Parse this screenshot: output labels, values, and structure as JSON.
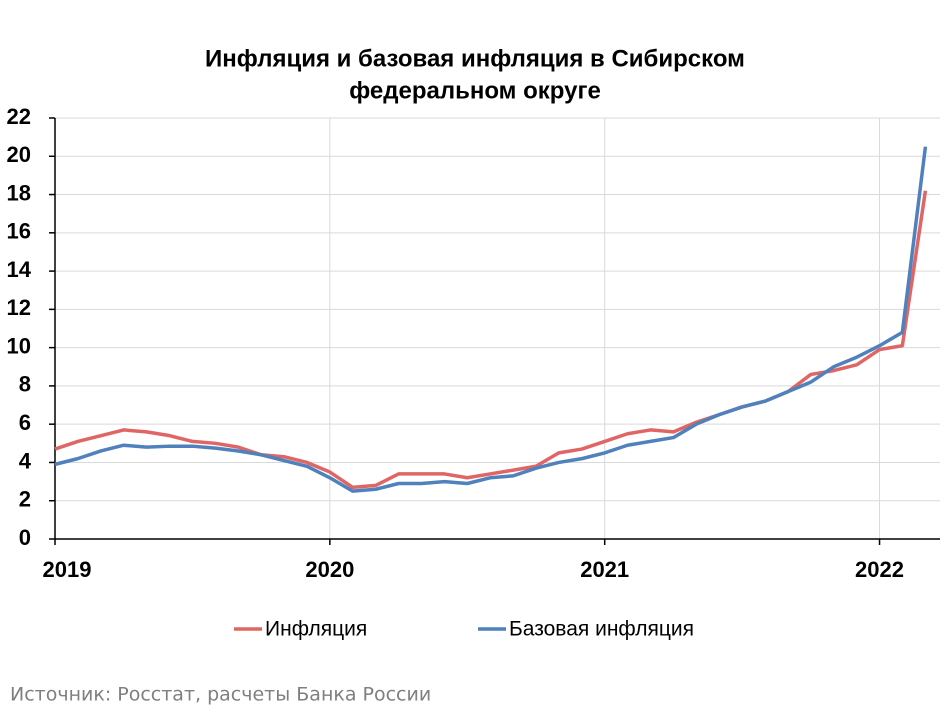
{
  "chart_data": {
    "type": "line",
    "title": [
      "Инфляция и базовая инфляция в Сибирском",
      "федеральном округе"
    ],
    "x": [
      2019,
      2019.083,
      2019.167,
      2019.25,
      2019.333,
      2019.417,
      2019.5,
      2019.583,
      2019.667,
      2019.75,
      2019.833,
      2019.917,
      2020,
      2020.083,
      2020.167,
      2020.25,
      2020.333,
      2020.417,
      2020.5,
      2020.583,
      2020.667,
      2020.75,
      2020.833,
      2020.917,
      2021,
      2021.083,
      2021.167,
      2021.25,
      2021.333,
      2021.417,
      2021.5,
      2021.583,
      2021.667,
      2021.75,
      2021.833,
      2021.917,
      2022,
      2022.083,
      2022.167
    ],
    "series": [
      {
        "name": "Инфляция",
        "color": "#e06666",
        "values": [
          4.7,
          5.1,
          5.4,
          5.7,
          5.6,
          5.4,
          5.1,
          5.0,
          4.8,
          4.4,
          4.3,
          4.0,
          3.5,
          2.7,
          2.8,
          3.4,
          3.4,
          3.4,
          3.2,
          3.4,
          3.6,
          3.8,
          4.5,
          4.7,
          5.1,
          5.5,
          5.7,
          5.6,
          6.1,
          6.5,
          6.9,
          7.2,
          7.7,
          8.6,
          8.8,
          9.1,
          9.9,
          10.1,
          18.2
        ]
      },
      {
        "name": "Базовая инфляция",
        "color": "#4f81bd",
        "values": [
          3.9,
          4.2,
          4.6,
          4.9,
          4.8,
          4.85,
          4.85,
          4.75,
          4.6,
          4.4,
          4.1,
          3.8,
          3.2,
          2.5,
          2.6,
          2.9,
          2.9,
          3.0,
          2.9,
          3.2,
          3.3,
          3.7,
          4.0,
          4.2,
          4.5,
          4.9,
          5.1,
          5.3,
          6.0,
          6.5,
          6.9,
          7.2,
          7.7,
          8.2,
          9.0,
          9.5,
          10.1,
          10.8,
          20.5
        ]
      }
    ],
    "xlim": [
      2019,
      2022.22
    ],
    "xticks": [
      2019,
      2020,
      2021,
      2022
    ],
    "ylim": [
      0,
      22
    ],
    "yticks": [
      0,
      2,
      4,
      6,
      8,
      10,
      12,
      14,
      16,
      18,
      20,
      22
    ],
    "grid": true,
    "legend": "bottom",
    "source": "Источник: Росстат, расчеты Банка России"
  }
}
